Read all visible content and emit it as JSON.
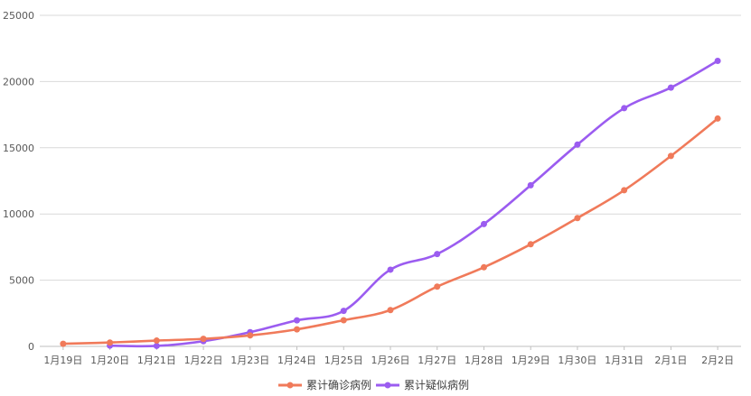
{
  "chart_data": {
    "type": "line",
    "categories": [
      "1月19日",
      "1月20日",
      "1月21日",
      "1月22日",
      "1月23日",
      "1月24日",
      "1月25日",
      "1月26日",
      "1月27日",
      "1月28日",
      "1月29日",
      "1月30日",
      "1月31日",
      "2月1日",
      "2月2日"
    ],
    "series": [
      {
        "name": "累计确诊病例",
        "color": "#f07a5a",
        "values": [
          198,
          291,
          440,
          571,
          830,
          1287,
          1975,
          2744,
          4515,
          5974,
          7711,
          9692,
          11791,
          14380,
          17205
        ]
      },
      {
        "name": "累计疑似病例",
        "color": "#9b5cf0",
        "values": [
          null,
          54,
          37,
          393,
          1072,
          1965,
          2684,
          5794,
          6973,
          9239,
          12167,
          15238,
          17988,
          19544,
          21558
        ]
      }
    ],
    "yticks": [
      0,
      5000,
      10000,
      15000,
      20000,
      25000
    ],
    "ylim": [
      0,
      25000
    ],
    "grid": true,
    "legend_position": "bottom"
  }
}
